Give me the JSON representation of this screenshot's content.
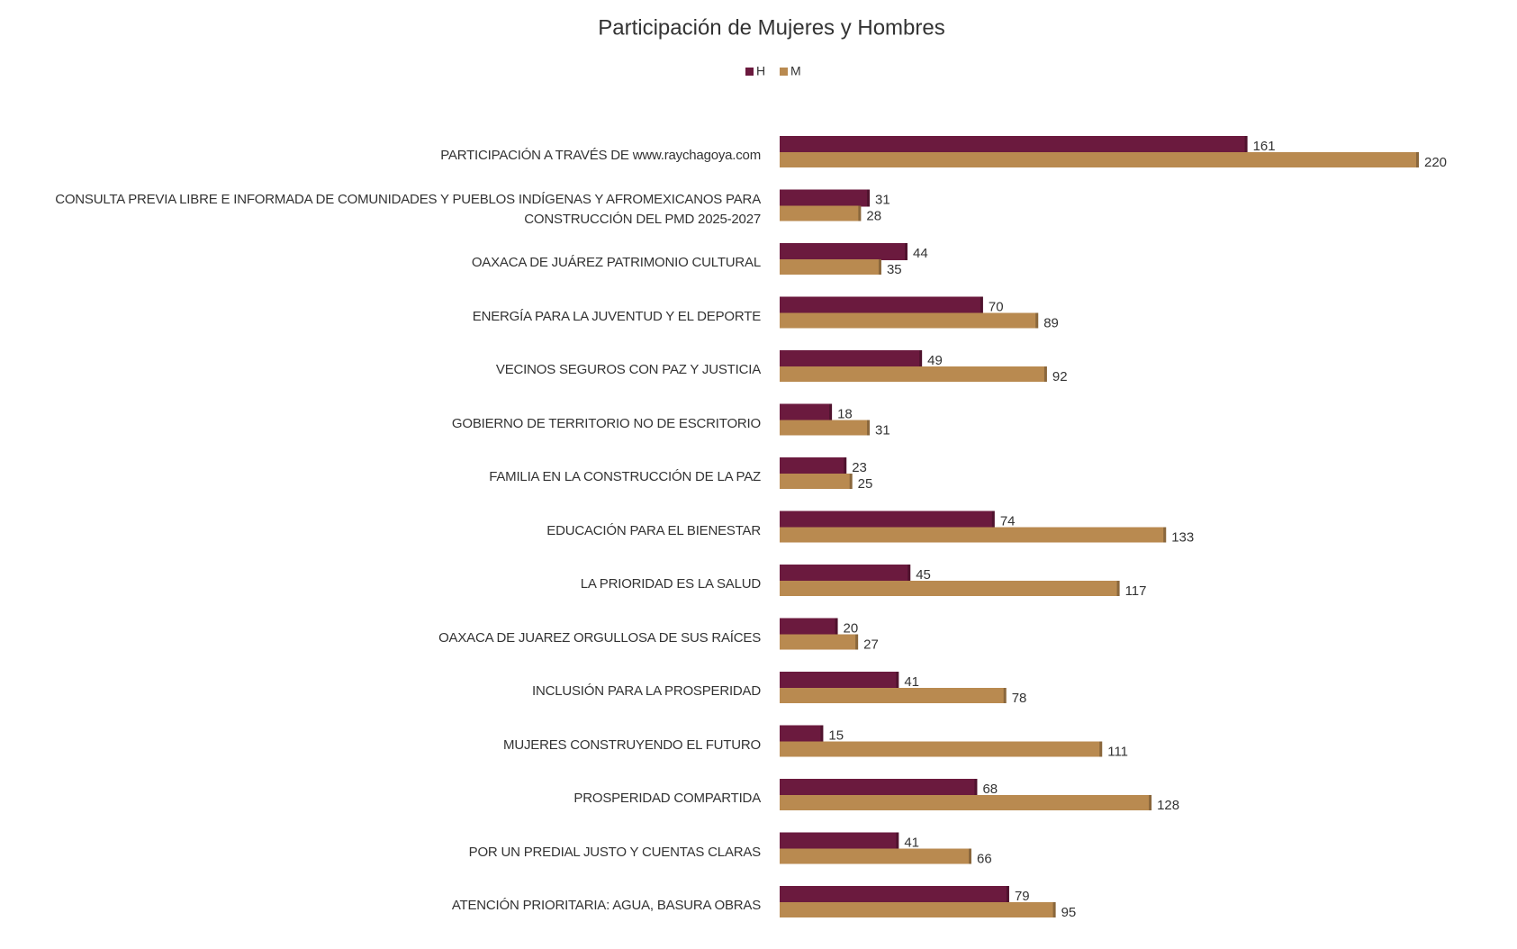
{
  "chart_data": {
    "type": "bar",
    "orientation": "horizontal",
    "title": "Participación de Mujeres y Hombres",
    "categories": [
      "PARTICIPACIÓN A TRAVÉS DE www.raychagoya.com",
      "CONSULTA PREVIA LIBRE E INFORMADA DE COMUNIDADES Y PUEBLOS INDÍGENAS Y AFROMEXICANOS PARA CONSTRUCCIÓN DEL PMD 2025-2027",
      "OAXACA DE JUÁREZ PATRIMONIO CULTURAL",
      "ENERGÍA PARA LA JUVENTUD Y EL DEPORTE",
      "VECINOS SEGUROS CON PAZ Y JUSTICIA",
      "GOBIERNO DE TERRITORIO NO DE ESCRITORIO",
      "FAMILIA EN LA CONSTRUCCIÓN DE LA PAZ",
      "EDUCACIÓN PARA EL BIENESTAR",
      "LA PRIORIDAD ES LA SALUD",
      "OAXACA DE JUAREZ ORGULLOSA DE SUS RAÍCES",
      "INCLUSIÓN PARA LA PROSPERIDAD",
      "MUJERES CONSTRUYENDO EL FUTURO",
      "PROSPERIDAD COMPARTIDA",
      "POR UN PREDIAL JUSTO Y CUENTAS CLARAS",
      "ATENCIÓN PRIORITARIA: AGUA, BASURA OBRAS"
    ],
    "series": [
      {
        "name": "H",
        "color": "#6b1a3e",
        "values": [
          161,
          31,
          44,
          70,
          49,
          18,
          23,
          74,
          45,
          20,
          41,
          15,
          68,
          41,
          79
        ]
      },
      {
        "name": "M",
        "color": "#b98a50",
        "values": [
          220,
          28,
          35,
          89,
          92,
          31,
          25,
          133,
          117,
          27,
          78,
          111,
          128,
          66,
          95
        ]
      }
    ],
    "legend": "top"
  }
}
